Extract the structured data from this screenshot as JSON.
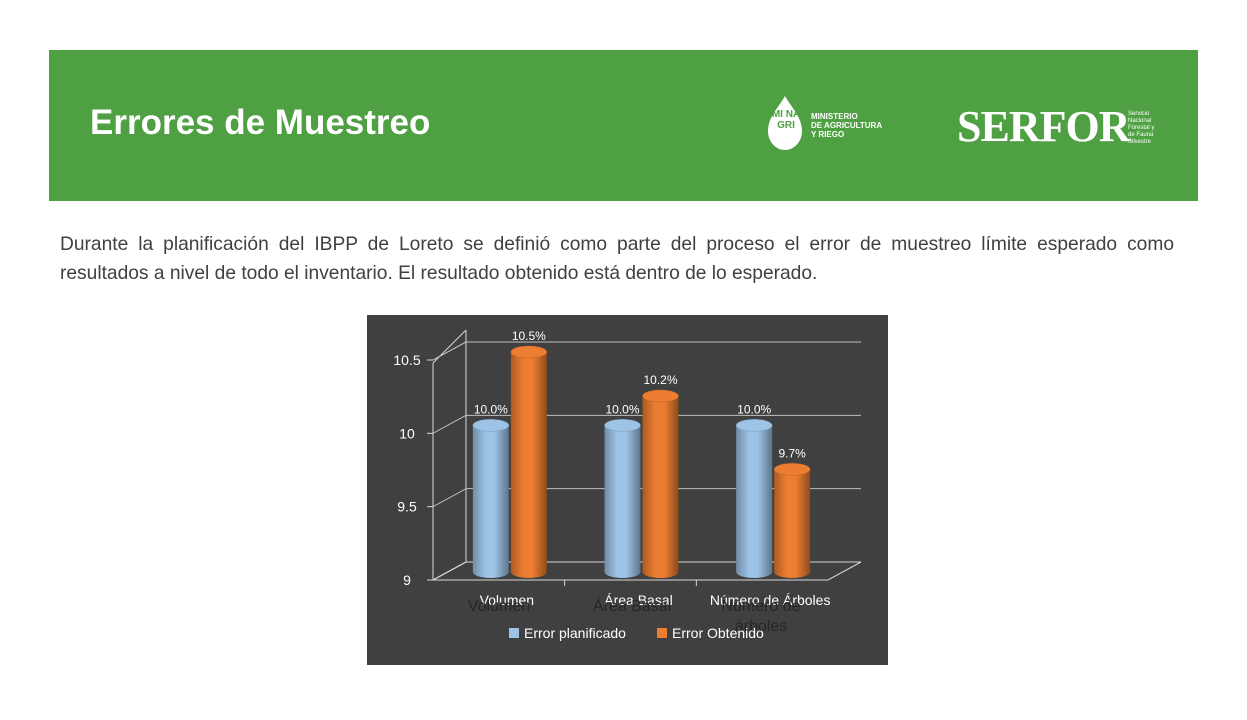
{
  "header": {
    "title": "Errores de Muestreo",
    "background": "#4fa043",
    "minagri": {
      "letters": "MI NA GRI",
      "text": "MINISTERIO\nDE AGRICULTURA\nY RIEGO"
    },
    "serfor": {
      "word": "SERFOR",
      "subtitle": "Servicio\nNacional\nForestal y\nde Fauna\nSilvestre"
    }
  },
  "body": {
    "paragraph": "Durante la planificación del IBPP de Loreto se definió como parte del proceso el error de muestreo límite esperado como resultados a nivel de todo el inventario. El resultado obtenido está dentro de lo esperado."
  },
  "chart_data": {
    "type": "bar",
    "categories": [
      "Volumen",
      "Área Basal",
      "Número de Árboles"
    ],
    "overlay_categories": [
      "Volumen",
      "Área Basal",
      "Número de árboles"
    ],
    "series": [
      {
        "name": "Error planificado",
        "values": [
          10.0,
          10.0,
          10.0
        ],
        "labels": [
          "10.0%",
          "10.0%",
          "10.0%"
        ],
        "color": "#9dc3e6"
      },
      {
        "name": "Error Obtenido",
        "values": [
          10.5,
          10.2,
          9.7
        ],
        "labels": [
          "10.5%",
          "10.2%",
          "9.7%"
        ],
        "color": "#ed7d31"
      }
    ],
    "yticks": [
      "9",
      "9.5",
      "10",
      "10.5"
    ],
    "ylim": [
      9,
      10.5
    ],
    "grid": true,
    "legend": "bottom",
    "background": "#404040"
  }
}
